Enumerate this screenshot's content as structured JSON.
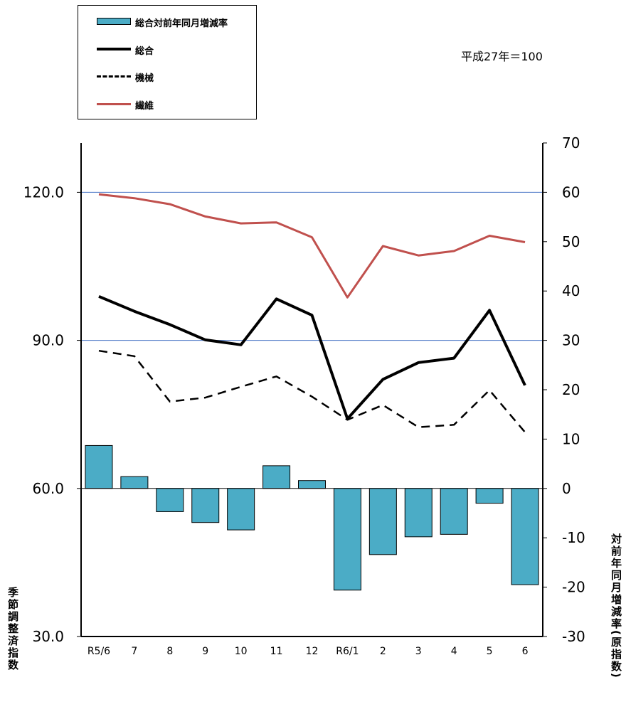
{
  "note": "平成27年＝100",
  "left_axis_label": "季節調整済指数",
  "right_axis_label": "対前年同月増減率(原指数)",
  "legend": [
    {
      "label": "総合対前年同月増減率",
      "kind": "bar",
      "color": "#4BACC6"
    },
    {
      "label": "総合",
      "kind": "solid",
      "color": "#000000"
    },
    {
      "label": "機械",
      "kind": "dashed",
      "color": "#000000"
    },
    {
      "label": "繊維",
      "kind": "solid",
      "color": "#C0504D"
    }
  ],
  "chart_data": {
    "type": "bar",
    "categories": [
      "R5/6",
      "7",
      "8",
      "9",
      "10",
      "11",
      "12",
      "R6/1",
      "2",
      "3",
      "4",
      "5",
      "6"
    ],
    "left_axis": {
      "ylim": [
        30,
        130
      ],
      "ticks": [
        "30.0",
        "60.0",
        "90.0",
        "120.0"
      ],
      "tick_values": [
        30,
        60,
        90,
        120
      ],
      "gridlines": [
        90,
        120
      ]
    },
    "right_axis": {
      "ylim": [
        -30,
        70
      ],
      "ticks": [
        -30,
        -20,
        -10,
        0,
        10,
        20,
        30,
        40,
        50,
        60,
        70
      ]
    },
    "series": [
      {
        "name": "総合対前年同月増減率",
        "type": "bar",
        "axis": "right",
        "color": "#4BACC6",
        "values": [
          8.7,
          2.4,
          -4.7,
          -6.9,
          -8.4,
          4.6,
          1.6,
          -20.6,
          -13.4,
          -9.8,
          -9.3,
          -3.0,
          -19.5
        ]
      },
      {
        "name": "総合",
        "type": "line",
        "axis": "left",
        "style": "solid",
        "color": "#000000",
        "values": [
          98.9,
          95.9,
          93.2,
          90.1,
          89.1,
          98.4,
          95.1,
          74.1,
          82.1,
          85.5,
          86.4,
          96.1,
          80.9
        ]
      },
      {
        "name": "機械",
        "type": "line",
        "axis": "left",
        "style": "dashed",
        "color": "#000000",
        "values": [
          87.9,
          86.8,
          77.6,
          78.4,
          80.6,
          82.7,
          78.6,
          73.9,
          76.9,
          72.4,
          72.9,
          79.9,
          71.4
        ]
      },
      {
        "name": "繊維",
        "type": "line",
        "axis": "left",
        "style": "solid",
        "color": "#C0504D",
        "values": [
          119.6,
          118.8,
          117.6,
          115.1,
          113.7,
          113.9,
          110.9,
          98.7,
          109.1,
          107.2,
          108.1,
          111.2,
          109.9
        ]
      }
    ]
  }
}
